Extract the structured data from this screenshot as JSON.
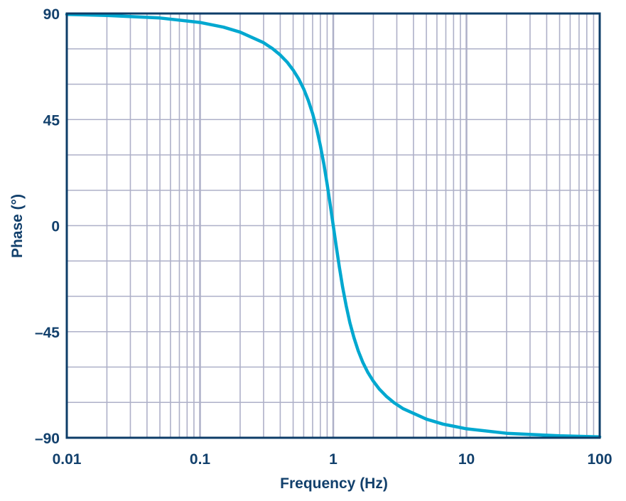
{
  "chart_data": {
    "type": "line",
    "title": "",
    "xlabel": "Frequency (Hz)",
    "ylabel": "Phase (°)",
    "xscale": "log",
    "xlim": [
      0.01,
      100
    ],
    "ylim": [
      -90,
      90
    ],
    "grid": true,
    "x_ticks": [
      0.01,
      0.1,
      1,
      10,
      100
    ],
    "x_tick_labels": [
      "0.01",
      "0.1",
      "1",
      "10",
      "100"
    ],
    "y_ticks": [
      90,
      45,
      0,
      -45,
      -90
    ],
    "y_tick_labels": [
      "90",
      "45",
      "0",
      "–45",
      "–90"
    ],
    "colors": {
      "curve": "#00a8d0",
      "axis": "#0d3d68",
      "grid": "#aeb0c8",
      "text": "#12406c"
    },
    "series": [
      {
        "x": [
          0.01,
          0.02,
          0.05,
          0.1,
          0.15,
          0.2,
          0.3,
          0.35,
          0.4,
          0.45,
          0.5,
          0.55,
          0.6,
          0.65,
          0.7,
          0.75,
          0.8,
          0.85,
          0.9,
          0.95,
          1,
          1.053,
          1.111,
          1.176,
          1.25,
          1.333,
          1.429,
          1.538,
          1.667,
          1.818,
          2,
          2.222,
          2.5,
          2.857,
          3.333,
          5,
          6.667,
          10,
          20,
          50,
          100
        ],
        "y": [
          89.6,
          89.2,
          88.1,
          86.2,
          84.2,
          82.1,
          77.6,
          75.1,
          72.4,
          69.4,
          66.0,
          62.3,
          58.0,
          53.1,
          47.5,
          41.2,
          34.0,
          26.1,
          17.6,
          8.7,
          0,
          -8.7,
          -17.6,
          -26.1,
          -34.0,
          -41.2,
          -47.5,
          -53.1,
          -58.0,
          -62.3,
          -66.0,
          -69.4,
          -72.4,
          -75.1,
          -77.6,
          -82.1,
          -84.2,
          -86.2,
          -88.1,
          -89.2,
          -89.6
        ]
      }
    ]
  }
}
